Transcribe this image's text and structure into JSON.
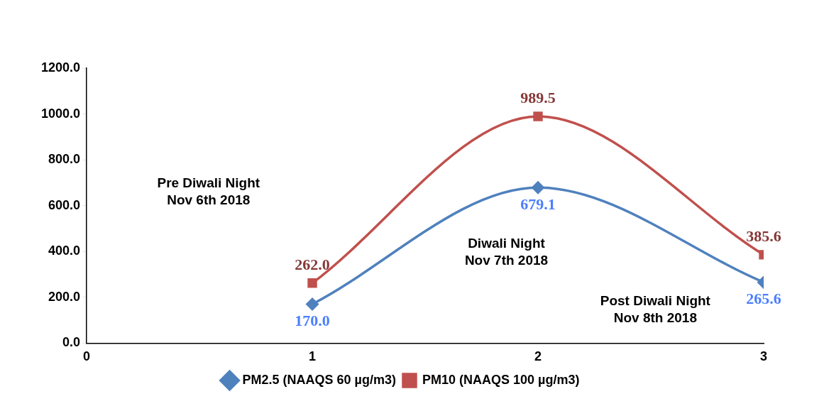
{
  "chart_data": {
    "type": "line",
    "x": [
      1,
      2,
      3
    ],
    "series": [
      {
        "name": "PM2.5 (NAAQS 60 µg/m3)",
        "color": "#4f81bd",
        "marker": "diamond",
        "values": [
          170.0,
          679.1,
          265.6
        ],
        "value_labels": [
          "170.0",
          "679.1",
          "265.6"
        ]
      },
      {
        "name": "PM10 (NAAQS 100 µg/m3)",
        "color": "#c0504d",
        "marker": "square",
        "values": [
          262.0,
          989.5,
          385.6
        ],
        "value_labels": [
          "262.0",
          "989.5",
          "385.6"
        ]
      }
    ],
    "xlim": [
      0,
      3
    ],
    "xticks": [
      0,
      1,
      2,
      3
    ],
    "ylim": [
      0,
      1200
    ],
    "yticks": [
      {
        "value": 0,
        "label": "0.0"
      },
      {
        "value": 200,
        "label": "200.0"
      },
      {
        "value": 400,
        "label": "400.0"
      },
      {
        "value": 600,
        "label": "600.0"
      },
      {
        "value": 800,
        "label": "800.0"
      },
      {
        "value": 1000,
        "label": "1000.0"
      },
      {
        "value": 1200,
        "label": "1200.0"
      }
    ],
    "grid": false,
    "legend": "bottom",
    "line_style": "solid",
    "annotations": [
      "Pre Diwali Night\nNov 6th 2018",
      "Diwali Night\nNov 7th 2018",
      "Post Diwali Night\nNov 8th 2018"
    ]
  }
}
